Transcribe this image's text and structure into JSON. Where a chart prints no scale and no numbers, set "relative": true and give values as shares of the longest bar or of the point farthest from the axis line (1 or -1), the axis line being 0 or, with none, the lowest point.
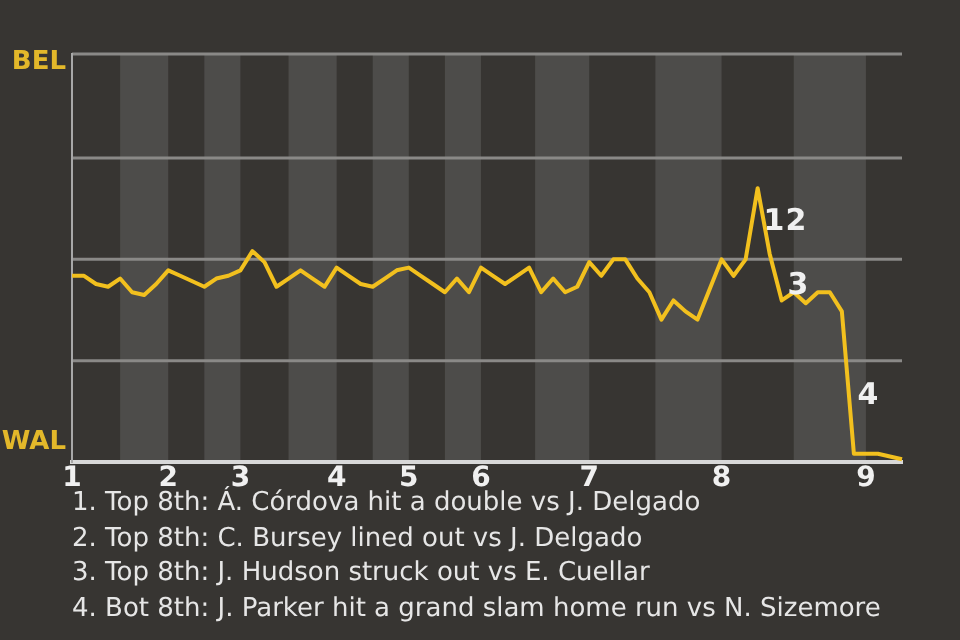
{
  "chart_data": {
    "type": "line",
    "marker": "none",
    "relative": true,
    "categories": [
      "1",
      null,
      null,
      null,
      null,
      null,
      null,
      null,
      "2",
      null,
      null,
      null,
      null,
      null,
      "3",
      null,
      null,
      null,
      null,
      null,
      null,
      null,
      "4",
      null,
      null,
      null,
      null,
      null,
      "5",
      null,
      null,
      null,
      null,
      null,
      "6",
      null,
      null,
      null,
      null,
      null,
      null,
      null,
      null,
      "7",
      null,
      null,
      null,
      null,
      null,
      null,
      null,
      null,
      null,
      null,
      "8",
      null,
      null,
      null,
      null,
      null,
      null,
      null,
      null,
      null,
      null,
      null,
      "9",
      null,
      null,
      null
    ],
    "ref_lines": [
      {
        "axis": "y",
        "value": 0.37,
        "label": null,
        "color": "#8a8987"
      },
      {
        "axis": "y",
        "value": 0.74,
        "label": null,
        "color": "#8a8987"
      },
      {
        "axis": "y",
        "value": 1.11,
        "label": null,
        "color": "#8a8987"
      },
      {
        "axis": "y",
        "value": 1.49,
        "label": null,
        "color": "#8a8987"
      }
    ],
    "series": [
      {
        "color": "#f2c01e",
        "values": [
          0.68,
          0.68,
          0.65,
          0.64,
          0.67,
          0.62,
          0.61,
          0.65,
          0.7,
          0.68,
          0.66,
          0.64,
          0.67,
          0.68,
          0.7,
          0.77,
          0.73,
          0.64,
          0.67,
          0.7,
          0.67,
          0.64,
          0.71,
          0.68,
          0.65,
          0.64,
          0.67,
          0.7,
          0.71,
          0.68,
          0.65,
          0.62,
          0.67,
          0.62,
          0.71,
          0.68,
          0.65,
          0.68,
          0.71,
          0.62,
          0.67,
          0.62,
          0.64,
          0.73,
          0.68,
          0.74,
          0.74,
          0.67,
          0.62,
          0.52,
          0.59,
          0.55,
          0.52,
          0.63,
          0.74,
          0.68,
          0.74,
          1,
          0.76,
          0.59,
          0.62,
          0.58,
          0.62,
          0.62,
          0.55,
          0.03,
          0.03,
          0.03,
          0.02,
          0.01
        ]
      }
    ],
    "annotations": [
      "BEL",
      "WAL",
      "1",
      "2",
      "3",
      "4",
      "1. Top 8th: Á. Córdova hit a double vs J. Delgado",
      "2. Top 8th: C. Bursey lined out vs J. Delgado",
      "3. Top 8th: J. Hudson struck out vs E. Cuellar",
      "4. Bot 8th: J. Parker hit a grand slam home run vs N. Sizemore"
    ]
  }
}
